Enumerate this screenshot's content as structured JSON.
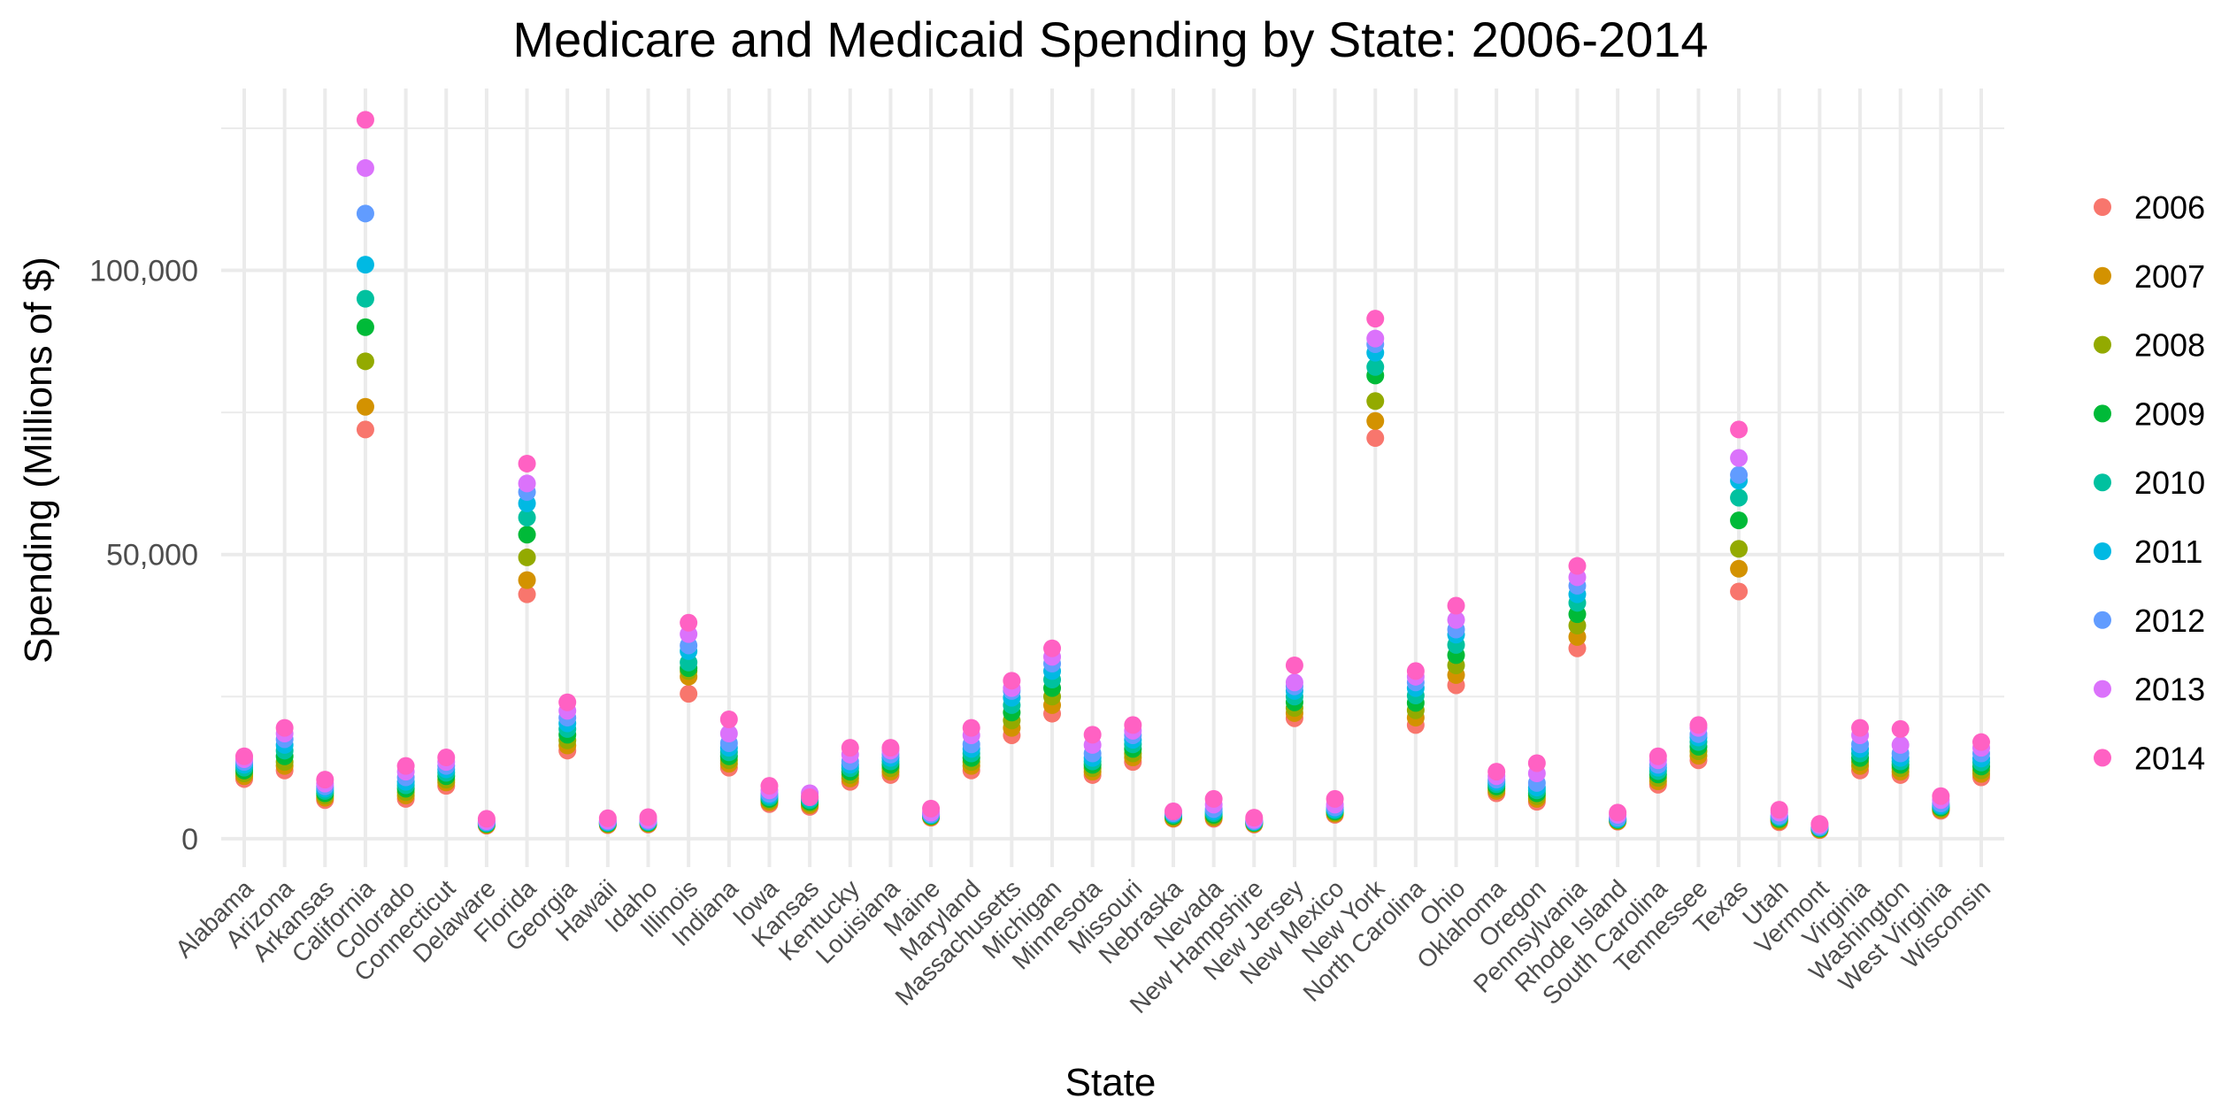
{
  "chart_data": {
    "type": "scatter",
    "title": "Medicare and Medicaid Spending by State: 2006-2014",
    "xlabel": "State",
    "ylabel": "Spending (Millions of $)",
    "ylim": [
      -5000,
      132000
    ],
    "yticks": [
      0,
      50000,
      100000
    ],
    "ytick_labels": [
      "0",
      "50,000",
      "100,000"
    ],
    "grid": true,
    "legend_position": "right",
    "categories": [
      "Alabama",
      "Arizona",
      "Arkansas",
      "California",
      "Colorado",
      "Connecticut",
      "Delaware",
      "Florida",
      "Georgia",
      "Hawaii",
      "Idaho",
      "Illinois",
      "Indiana",
      "Iowa",
      "Kansas",
      "Kentucky",
      "Louisiana",
      "Maine",
      "Maryland",
      "Massachusetts",
      "Michigan",
      "Minnesota",
      "Missouri",
      "Nebraska",
      "Nevada",
      "New Hampshire",
      "New Jersey",
      "New Mexico",
      "New York",
      "North Carolina",
      "Ohio",
      "Oklahoma",
      "Oregon",
      "Pennsylvania",
      "Rhode Island",
      "South Carolina",
      "Tennessee",
      "Texas",
      "Utah",
      "Vermont",
      "Virginia",
      "Washington",
      "West Virginia",
      "Wisconsin"
    ],
    "series": [
      {
        "name": "2006",
        "color": "#F8766D",
        "values": [
          10500,
          12000,
          6800,
          72000,
          7000,
          9300,
          2300,
          43000,
          15500,
          2400,
          2500,
          25500,
          12500,
          6100,
          5600,
          10000,
          11200,
          3700,
          12000,
          18200,
          22000,
          11200,
          13500,
          3500,
          3500,
          2500,
          21200,
          4200,
          70500,
          20000,
          27000,
          8000,
          6500,
          33500,
          3000,
          9500,
          13800,
          43500,
          2900,
          1500,
          12000,
          11200,
          4900,
          10800
        ]
      },
      {
        "name": "2007",
        "color": "#D39200",
        "values": [
          11000,
          12800,
          7200,
          76000,
          7600,
          9900,
          2400,
          45500,
          16400,
          2500,
          2600,
          28500,
          13200,
          6400,
          5900,
          10600,
          11800,
          3800,
          12800,
          19500,
          23500,
          11800,
          14300,
          3600,
          3700,
          2600,
          22100,
          4400,
          73500,
          21300,
          28800,
          8400,
          7000,
          35500,
          3100,
          10100,
          14600,
          47500,
          3100,
          1600,
          12800,
          11800,
          5100,
          11400
        ]
      },
      {
        "name": "2008",
        "color": "#93AA00",
        "values": [
          11500,
          13500,
          7600,
          84000,
          8200,
          10400,
          2500,
          49500,
          17300,
          2600,
          2700,
          29500,
          13800,
          6700,
          6200,
          11200,
          12400,
          3900,
          13500,
          20800,
          25000,
          12400,
          15000,
          3800,
          3900,
          2700,
          23000,
          4600,
          77000,
          22600,
          30500,
          8800,
          7500,
          37500,
          3200,
          10700,
          15400,
          51000,
          3300,
          1700,
          13500,
          12400,
          5300,
          12000
        ]
      },
      {
        "name": "2009",
        "color": "#00BA38",
        "values": [
          12000,
          14500,
          8000,
          90000,
          8800,
          11000,
          2600,
          53500,
          18300,
          2700,
          2800,
          30000,
          14500,
          7000,
          6500,
          11800,
          13000,
          4000,
          14200,
          22200,
          26500,
          13000,
          15800,
          4000,
          4200,
          2800,
          24000,
          4800,
          81500,
          23900,
          32300,
          9200,
          8000,
          39500,
          3300,
          11300,
          16200,
          56000,
          3500,
          1800,
          14200,
          13000,
          5500,
          12700
        ]
      },
      {
        "name": "2010",
        "color": "#00C19F",
        "values": [
          12500,
          15500,
          8400,
          95000,
          9400,
          11600,
          2700,
          56500,
          19300,
          2800,
          2900,
          31000,
          15200,
          7300,
          6800,
          12400,
          13600,
          4100,
          15000,
          23500,
          28000,
          13600,
          16600,
          4200,
          4500,
          2900,
          25000,
          5000,
          83000,
          25200,
          34100,
          9600,
          8500,
          41500,
          3400,
          11900,
          17000,
          60000,
          3700,
          1900,
          15000,
          13600,
          5700,
          13400
        ]
      },
      {
        "name": "2011",
        "color": "#00B9E3",
        "values": [
          13000,
          16500,
          8800,
          101000,
          10000,
          12200,
          2800,
          59000,
          20300,
          2900,
          3000,
          33000,
          16000,
          7600,
          7100,
          13000,
          14200,
          4200,
          15800,
          24800,
          29500,
          14200,
          17400,
          4400,
          4800,
          3000,
          26000,
          5200,
          85500,
          26500,
          35900,
          10000,
          9000,
          43000,
          3500,
          12500,
          17800,
          63000,
          3900,
          2000,
          15800,
          14200,
          5900,
          14100
        ]
      },
      {
        "name": "2012",
        "color": "#619CFF",
        "values": [
          13500,
          17500,
          9200,
          110000,
          10800,
          12800,
          2900,
          61000,
          21300,
          3000,
          3100,
          34000,
          16800,
          7900,
          7400,
          13600,
          14800,
          4300,
          16600,
          26000,
          30800,
          15000,
          18200,
          4500,
          5200,
          3100,
          26800,
          5500,
          87000,
          27500,
          36800,
          10400,
          9800,
          44500,
          3700,
          13000,
          18400,
          64000,
          4000,
          2100,
          16600,
          15000,
          6200,
          15000
        ]
      },
      {
        "name": "2013",
        "color": "#DB72FB",
        "values": [
          14000,
          18500,
          9700,
          118000,
          11800,
          13500,
          3100,
          62500,
          22500,
          3200,
          3300,
          36000,
          18500,
          8500,
          8000,
          14800,
          15500,
          4600,
          18200,
          26500,
          32000,
          16500,
          19000,
          4800,
          6000,
          3300,
          27500,
          6000,
          88000,
          28500,
          38500,
          11000,
          11500,
          46000,
          4200,
          13800,
          19500,
          67000,
          4600,
          2400,
          18200,
          16500,
          6800,
          16000
        ]
      },
      {
        "name": "2014",
        "color": "#FF61C3",
        "values": [
          14500,
          19500,
          10400,
          126500,
          12800,
          14300,
          3500,
          66000,
          24000,
          3600,
          3800,
          38000,
          21000,
          9300,
          7300,
          16000,
          16000,
          5300,
          19500,
          27800,
          33500,
          18300,
          20000,
          4800,
          7000,
          3700,
          30500,
          7000,
          91500,
          29500,
          41000,
          11800,
          13300,
          48000,
          4600,
          14500,
          20000,
          72000,
          5100,
          2600,
          19500,
          19300,
          7500,
          17000
        ]
      }
    ]
  }
}
